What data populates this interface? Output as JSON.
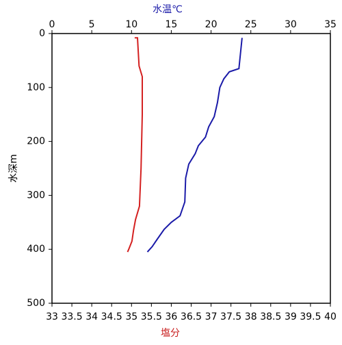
{
  "chart_data": {
    "type": "profile",
    "x_top_label": "水温℃",
    "x_top_label_color": "#1a1aa8",
    "x_bottom_label": "塩分",
    "x_bottom_label_color": "#c81e1e",
    "y_label": "水深m",
    "x2lim": [
      0,
      35
    ],
    "x2ticks": [
      0,
      5,
      10,
      15,
      20,
      25,
      30,
      35
    ],
    "xlim": [
      33,
      40
    ],
    "xticks": [
      33,
      33.5,
      34,
      34.5,
      35,
      35.5,
      36,
      36.5,
      37,
      37.5,
      38,
      38.5,
      39,
      39.5,
      40
    ],
    "ylim": [
      0,
      500
    ],
    "yticks": [
      0,
      100,
      200,
      300,
      400,
      500
    ],
    "y_inverted": true,
    "series": [
      {
        "color": "#1a1aa8",
        "axis": "x2",
        "values": [
          23.9,
          23.5,
          22.3,
          21.6,
          21.1,
          20.8,
          20.4,
          19.7,
          19.3,
          18.4,
          18.0,
          17.2,
          16.8,
          16.7,
          16.1,
          15.0,
          14.1,
          13.2,
          12.6,
          12.0
        ],
        "depth": [
          8,
          65,
          71,
          84,
          100,
          128,
          154,
          173,
          192,
          208,
          223,
          242,
          268,
          312,
          338,
          350,
          363,
          382,
          395,
          405
        ]
      },
      {
        "color": "#d42020",
        "axis": "x",
        "values": [
          35.08,
          35.15,
          35.19,
          35.27,
          35.27,
          35.24,
          35.2,
          35.1,
          35.05,
          35.01,
          34.93,
          34.9
        ],
        "depth": [
          8,
          8,
          60,
          80,
          150,
          250,
          320,
          345,
          365,
          385,
          400,
          405
        ]
      }
    ]
  }
}
